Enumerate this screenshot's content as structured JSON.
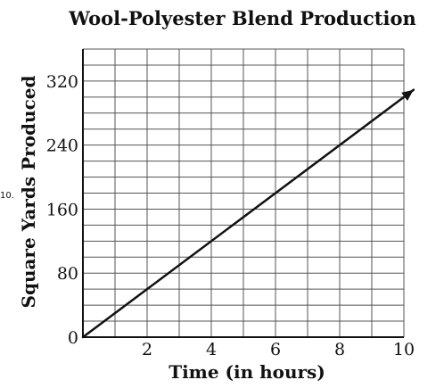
{
  "question_number": "10.",
  "chart_data": {
    "type": "line",
    "title": "Wool-Polyester Blend Production",
    "xlabel": "Time (in hours)",
    "ylabel": "Square Yards Produced",
    "xlim": [
      0,
      10
    ],
    "ylim": [
      0,
      360
    ],
    "x_ticks": [
      0,
      2,
      4,
      6,
      8,
      10
    ],
    "x_tick_labels": [
      "",
      "2",
      "4",
      "6",
      "8",
      "10"
    ],
    "y_ticks": [
      0,
      80,
      160,
      240,
      320
    ],
    "y_tick_labels": [
      "0",
      "80",
      "160",
      "240",
      "320"
    ],
    "x_grid_step": 1,
    "y_grid_step": 20,
    "grid": true,
    "series": [
      {
        "x": [
          0,
          10.3
        ],
        "y": [
          0,
          309
        ],
        "arrow_end": true,
        "color": "#111111"
      }
    ]
  }
}
